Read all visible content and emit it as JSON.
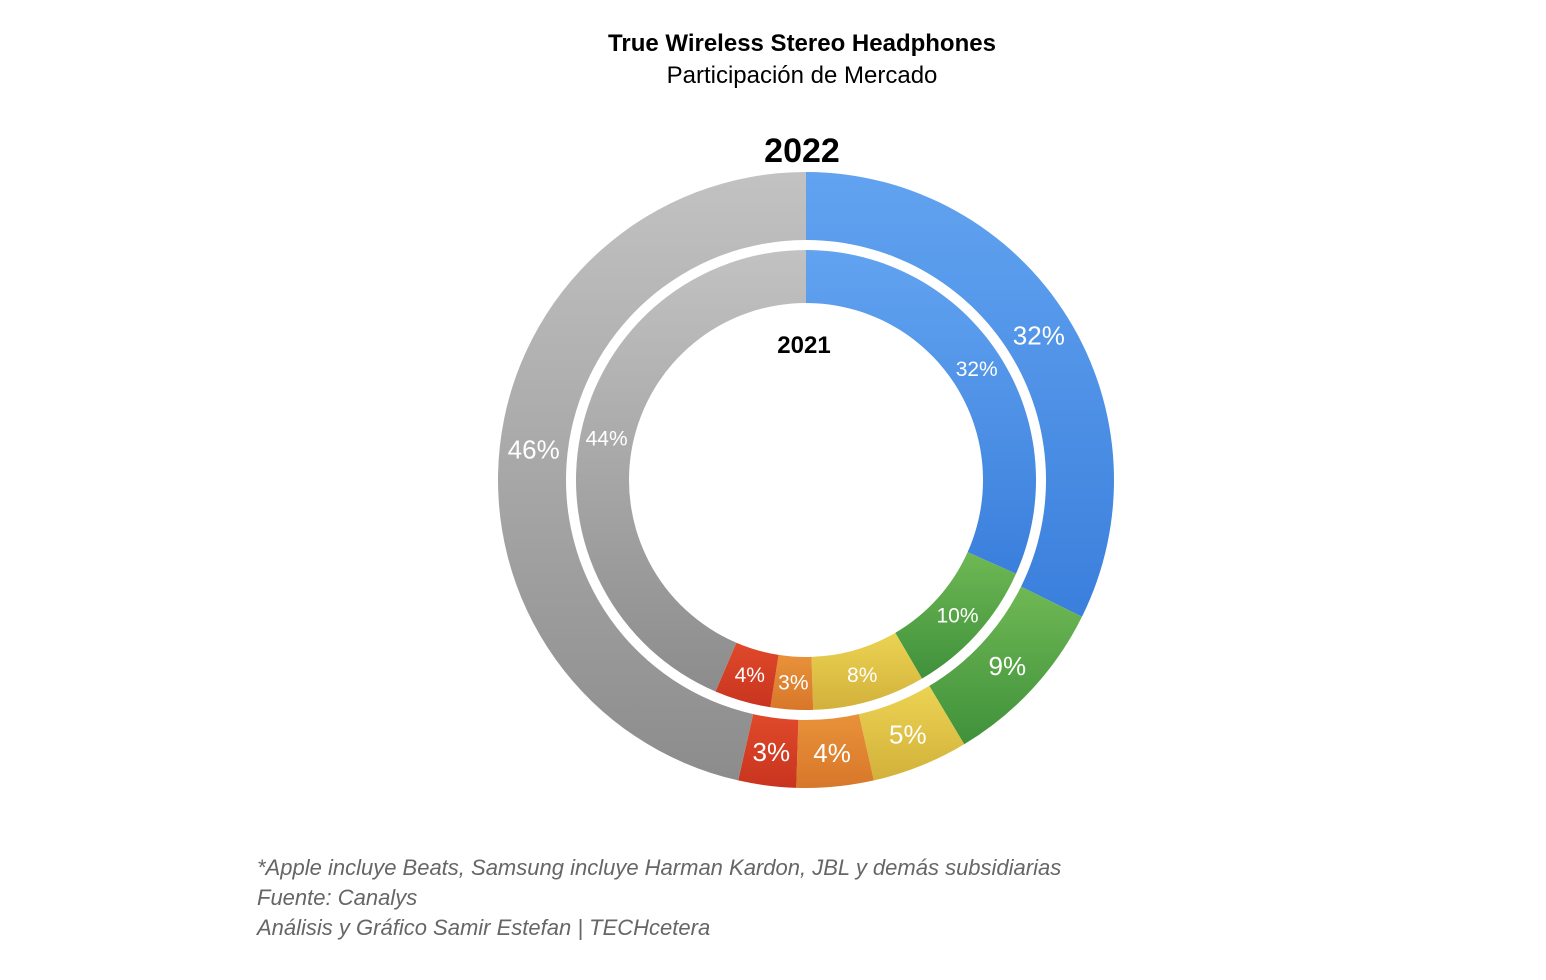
{
  "title": "True Wireless Stereo Headphones",
  "subtitle": "Participación de Mercado",
  "chart_data": [
    {
      "type": "pie",
      "ring": "outer",
      "label": "2022",
      "slices": [
        {
          "value": 32,
          "label": "32%",
          "color": "#3a7fdc",
          "color_light": "#62a3f0"
        },
        {
          "value": 9,
          "label": "9%",
          "color": "#3f913b",
          "color_light": "#6fb854"
        },
        {
          "value": 5,
          "label": "5%",
          "color": "#d2b13a",
          "color_light": "#ecd353"
        },
        {
          "value": 4,
          "label": "4%",
          "color": "#d8772a",
          "color_light": "#e8923a"
        },
        {
          "value": 3,
          "label": "3%",
          "color": "#c8341f",
          "color_light": "#e0492a"
        },
        {
          "value": 46,
          "label": "46%",
          "color": "#8c8c8c",
          "color_light": "#c2c2c2"
        }
      ]
    },
    {
      "type": "pie",
      "ring": "inner",
      "label": "2021",
      "slices": [
        {
          "value": 32,
          "label": "32%",
          "color": "#3a7fdc",
          "color_light": "#62a3f0"
        },
        {
          "value": 10,
          "label": "10%",
          "color": "#3f913b",
          "color_light": "#6fb854"
        },
        {
          "value": 8,
          "label": "8%",
          "color": "#d2b13a",
          "color_light": "#ecd353"
        },
        {
          "value": 3,
          "label": "3%",
          "color": "#d8772a",
          "color_light": "#e8923a"
        },
        {
          "value": 4,
          "label": "4%",
          "color": "#c8341f",
          "color_light": "#e0492a"
        },
        {
          "value": 44,
          "label": "44%",
          "color": "#8c8c8c",
          "color_light": "#c2c2c2"
        }
      ]
    }
  ],
  "footnotes": [
    "*Apple incluye Beats, Samsung incluye Harman Kardon, JBL y demás subsidiarias",
    "Fuente: Canalys",
    "Análisis y Gráfico Samir Estefan | TECHcetera"
  ]
}
